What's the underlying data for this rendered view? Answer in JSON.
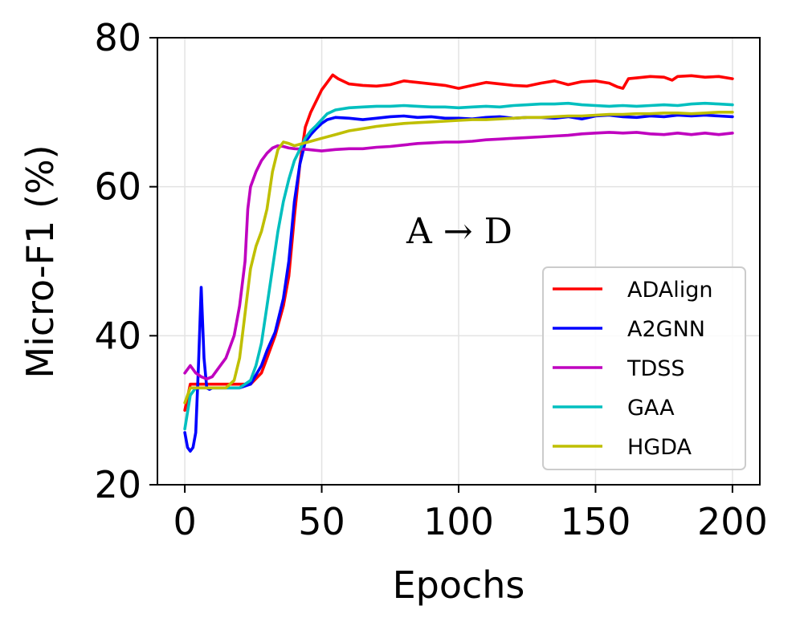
{
  "chart_data": {
    "type": "line",
    "title": "",
    "xlabel": "Epochs",
    "ylabel": "Micro-F1 (%)",
    "xlim": [
      -10,
      210
    ],
    "ylim": [
      20,
      80
    ],
    "xticks": [
      0,
      50,
      100,
      150,
      200
    ],
    "yticks": [
      20,
      40,
      60,
      80
    ],
    "grid": true,
    "legend_position": "lower-right",
    "annotation": "A → D",
    "series": [
      {
        "name": "ADAlign",
        "color": "#ff0000",
        "x": [
          0,
          2,
          4,
          6,
          8,
          10,
          15,
          20,
          24,
          28,
          30,
          33,
          36,
          38,
          40,
          42,
          44,
          46,
          48,
          50,
          52,
          54,
          56,
          60,
          65,
          70,
          75,
          80,
          85,
          90,
          95,
          100,
          105,
          110,
          115,
          120,
          125,
          130,
          135,
          140,
          145,
          150,
          155,
          158,
          160,
          162,
          165,
          170,
          175,
          178,
          180,
          185,
          190,
          195,
          200
        ],
        "y": [
          30,
          33.5,
          33.5,
          33.5,
          33.5,
          33.5,
          33.5,
          33.5,
          33.5,
          35,
          37,
          40,
          44,
          48,
          56,
          63,
          68,
          70,
          71.5,
          73,
          74,
          75,
          74.5,
          73.8,
          73.6,
          73.5,
          73.7,
          74.2,
          74,
          73.8,
          73.6,
          73.2,
          73.6,
          74,
          73.8,
          73.6,
          73.5,
          73.9,
          74.2,
          73.7,
          74.1,
          74.2,
          73.9,
          73.4,
          73.2,
          74.5,
          74.6,
          74.8,
          74.7,
          74.3,
          74.8,
          74.9,
          74.7,
          74.8,
          74.5
        ]
      },
      {
        "name": "A2GNN",
        "color": "#0000ff",
        "x": [
          0,
          1,
          2,
          3,
          4,
          5,
          6,
          7,
          8,
          9,
          10,
          12,
          15,
          20,
          24,
          28,
          30,
          33,
          36,
          38,
          40,
          42,
          44,
          46,
          48,
          50,
          52,
          55,
          60,
          65,
          70,
          75,
          80,
          85,
          90,
          95,
          100,
          105,
          110,
          115,
          120,
          125,
          130,
          135,
          140,
          145,
          150,
          155,
          160,
          165,
          170,
          175,
          180,
          185,
          190,
          195,
          200
        ],
        "y": [
          27,
          25,
          24.5,
          25,
          27,
          36,
          46.5,
          37,
          33,
          32.8,
          33,
          33,
          33,
          33,
          33.5,
          36,
          38,
          40.5,
          45,
          50,
          58,
          63,
          66,
          67,
          67.8,
          68.5,
          69,
          69.3,
          69.2,
          69,
          69.2,
          69.4,
          69.5,
          69.3,
          69.4,
          69.2,
          69.2,
          69.1,
          69.3,
          69.4,
          69.2,
          69.3,
          69.3,
          69.2,
          69.4,
          69.1,
          69.5,
          69.6,
          69.4,
          69.3,
          69.5,
          69.4,
          69.6,
          69.5,
          69.6,
          69.5,
          69.4
        ]
      },
      {
        "name": "TDSS",
        "color": "#bf00bf",
        "x": [
          0,
          2,
          4,
          6,
          8,
          10,
          12,
          15,
          18,
          20,
          22,
          23,
          24,
          26,
          28,
          30,
          32,
          34,
          36,
          38,
          40,
          45,
          50,
          55,
          60,
          65,
          70,
          75,
          80,
          85,
          90,
          95,
          100,
          105,
          110,
          115,
          120,
          125,
          130,
          135,
          140,
          145,
          150,
          155,
          160,
          165,
          170,
          175,
          180,
          185,
          190,
          195,
          200
        ],
        "y": [
          35,
          36,
          35,
          34.5,
          34.2,
          34.5,
          35.5,
          37,
          40,
          44,
          50,
          57,
          60,
          62,
          63.5,
          64.5,
          65.2,
          65.5,
          65.4,
          65.2,
          65.1,
          65.0,
          64.8,
          65,
          65.1,
          65.1,
          65.3,
          65.4,
          65.6,
          65.8,
          65.9,
          66,
          66,
          66.1,
          66.3,
          66.4,
          66.5,
          66.6,
          66.7,
          66.8,
          66.9,
          67.1,
          67.2,
          67.3,
          67.2,
          67.3,
          67.1,
          67.0,
          67.2,
          67.0,
          67.2,
          67.0,
          67.2
        ]
      },
      {
        "name": "GAA",
        "color": "#00bfbf",
        "x": [
          0,
          2,
          4,
          6,
          8,
          10,
          15,
          20,
          24,
          26,
          28,
          30,
          32,
          34,
          36,
          38,
          40,
          42,
          44,
          46,
          48,
          50,
          52,
          55,
          60,
          65,
          70,
          75,
          80,
          85,
          90,
          95,
          100,
          105,
          110,
          115,
          120,
          125,
          130,
          135,
          140,
          145,
          150,
          155,
          160,
          165,
          170,
          175,
          180,
          185,
          190,
          195,
          200
        ],
        "y": [
          27.5,
          32,
          33,
          33,
          33,
          33,
          33,
          33,
          34,
          36,
          39,
          44,
          49,
          54,
          58,
          61,
          63.5,
          65,
          66.5,
          67.5,
          68.2,
          69,
          69.8,
          70.3,
          70.6,
          70.7,
          70.8,
          70.8,
          70.9,
          70.8,
          70.7,
          70.7,
          70.6,
          70.7,
          70.8,
          70.7,
          70.9,
          71,
          71.1,
          71.1,
          71.2,
          71,
          70.9,
          70.8,
          70.9,
          70.8,
          70.9,
          71,
          70.9,
          71.1,
          71.2,
          71.1,
          71
        ]
      },
      {
        "name": "HGDA",
        "color": "#bfbf00",
        "x": [
          0,
          2,
          4,
          6,
          8,
          10,
          15,
          18,
          20,
          22,
          24,
          26,
          28,
          30,
          32,
          34,
          36,
          38,
          40,
          42,
          45,
          50,
          55,
          60,
          65,
          70,
          75,
          80,
          85,
          90,
          95,
          100,
          105,
          110,
          115,
          120,
          125,
          130,
          135,
          140,
          145,
          150,
          155,
          160,
          165,
          170,
          175,
          180,
          185,
          190,
          195,
          200
        ],
        "y": [
          31,
          33,
          33,
          33,
          33,
          33,
          33,
          34,
          37,
          43,
          49,
          52,
          54,
          57,
          62,
          65,
          66,
          65.8,
          65.5,
          65.7,
          66,
          66.5,
          67,
          67.5,
          67.8,
          68.1,
          68.3,
          68.5,
          68.6,
          68.7,
          68.8,
          68.9,
          69,
          69,
          69.1,
          69.2,
          69.3,
          69.3,
          69.4,
          69.5,
          69.5,
          69.6,
          69.7,
          69.7,
          69.8,
          69.8,
          69.9,
          69.9,
          69.8,
          69.9,
          70,
          70
        ]
      }
    ]
  }
}
